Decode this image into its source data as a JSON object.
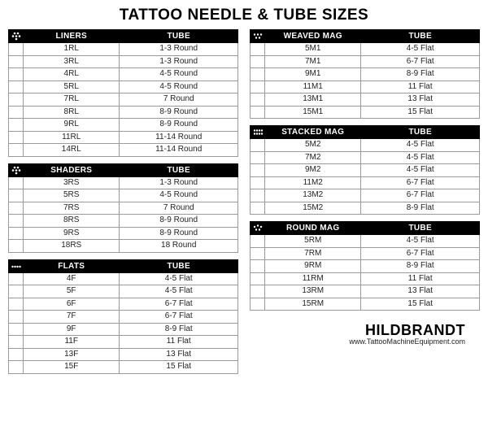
{
  "title": "TATTOO NEEDLE & TUBE SIZES",
  "brand": {
    "name": "HILDBRANDT",
    "url": "www.TattooMachineEquipment.com"
  },
  "colors": {
    "header_bg": "#000000",
    "header_fg": "#ffffff",
    "border": "#9a9a9a",
    "text": "#222222",
    "bg": "#ffffff"
  },
  "fontsize": {
    "title": 19,
    "header": 10,
    "cell": 10,
    "brand_name": 18,
    "brand_url": 9
  },
  "tables": {
    "liners": {
      "icon": "dots-liner",
      "headers": [
        "LINERS",
        "TUBE"
      ],
      "rows": [
        [
          "1RL",
          "1-3 Round"
        ],
        [
          "3RL",
          "1-3 Round"
        ],
        [
          "4RL",
          "4-5 Round"
        ],
        [
          "5RL",
          "4-5 Round"
        ],
        [
          "7RL",
          "7 Round"
        ],
        [
          "8RL",
          "8-9 Round"
        ],
        [
          "9RL",
          "8-9 Round"
        ],
        [
          "11RL",
          "11-14 Round"
        ],
        [
          "14RL",
          "11-14 Round"
        ]
      ]
    },
    "shaders": {
      "icon": "dots-shader",
      "headers": [
        "SHADERS",
        "TUBE"
      ],
      "rows": [
        [
          "3RS",
          "1-3 Round"
        ],
        [
          "5RS",
          "4-5 Round"
        ],
        [
          "7RS",
          "7 Round"
        ],
        [
          "8RS",
          "8-9 Round"
        ],
        [
          "9RS",
          "8-9 Round"
        ],
        [
          "18RS",
          "18 Round"
        ]
      ]
    },
    "flats": {
      "icon": "dots-flat",
      "headers": [
        "FLATS",
        "TUBE"
      ],
      "rows": [
        [
          "4F",
          "4-5 Flat"
        ],
        [
          "5F",
          "4-5 Flat"
        ],
        [
          "6F",
          "6-7 Flat"
        ],
        [
          "7F",
          "6-7 Flat"
        ],
        [
          "9F",
          "8-9 Flat"
        ],
        [
          "11F",
          "11 Flat"
        ],
        [
          "13F",
          "13 Flat"
        ],
        [
          "15F",
          "15 Flat"
        ]
      ]
    },
    "weaved": {
      "icon": "dots-weaved",
      "headers": [
        "WEAVED MAG",
        "TUBE"
      ],
      "rows": [
        [
          "5M1",
          "4-5 Flat"
        ],
        [
          "7M1",
          "6-7 Flat"
        ],
        [
          "9M1",
          "8-9 Flat"
        ],
        [
          "11M1",
          "11 Flat"
        ],
        [
          "13M1",
          "13 Flat"
        ],
        [
          "15M1",
          "15 Flat"
        ]
      ]
    },
    "stacked": {
      "icon": "dots-stacked",
      "headers": [
        "STACKED MAG",
        "TUBE"
      ],
      "rows": [
        [
          "5M2",
          "4-5 Flat"
        ],
        [
          "7M2",
          "4-5 Flat"
        ],
        [
          "9M2",
          "4-5 Flat"
        ],
        [
          "11M2",
          "6-7 Flat"
        ],
        [
          "13M2",
          "6-7 Flat"
        ],
        [
          "15M2",
          "8-9 Flat"
        ]
      ]
    },
    "roundmag": {
      "icon": "dots-roundmag",
      "headers": [
        "ROUND MAG",
        "TUBE"
      ],
      "rows": [
        [
          "5RM",
          "4-5 Flat"
        ],
        [
          "7RM",
          "6-7 Flat"
        ],
        [
          "9RM",
          "8-9 Flat"
        ],
        [
          "11RM",
          "11 Flat"
        ],
        [
          "13RM",
          "13 Flat"
        ],
        [
          "15RM",
          "15 Flat"
        ]
      ]
    }
  }
}
